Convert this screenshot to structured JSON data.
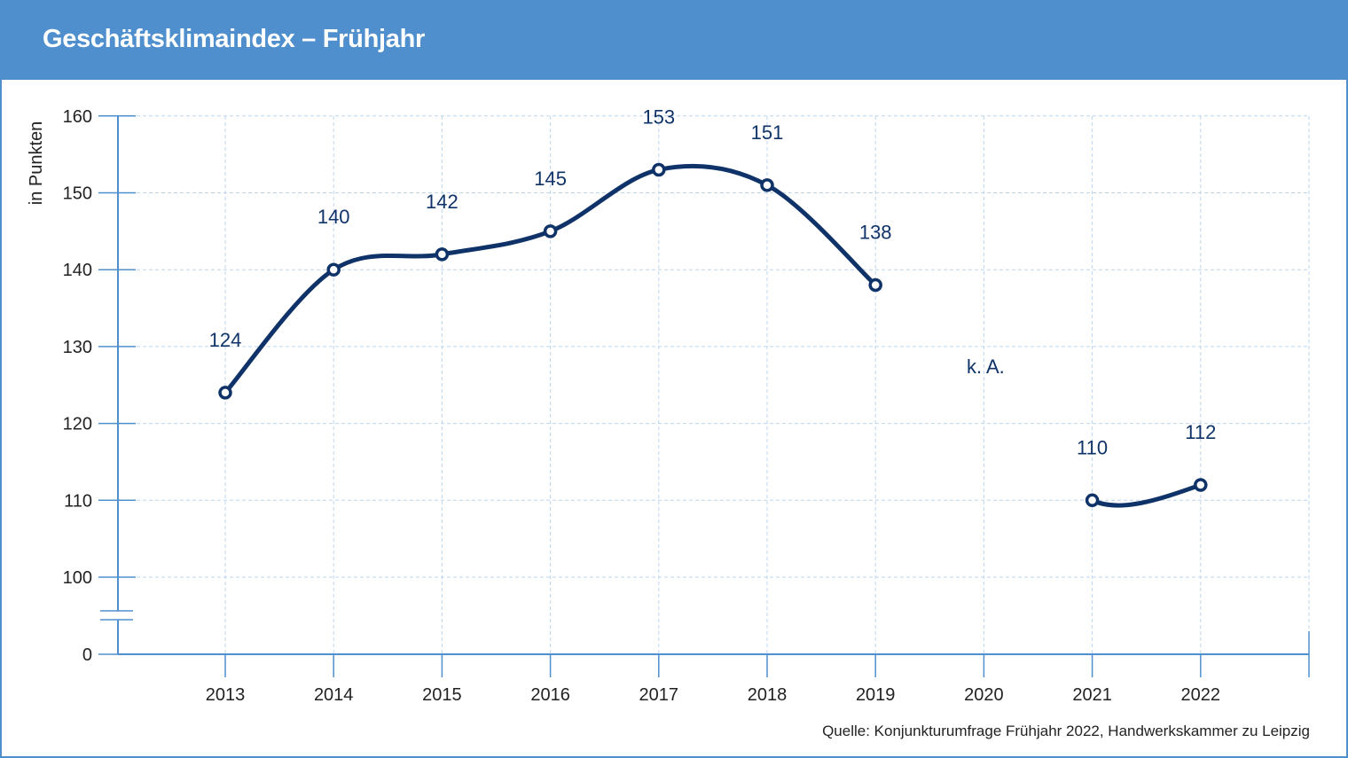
{
  "header": {
    "title": "Geschäftsklimaindex – Frühjahr"
  },
  "source": "Quelle: Konjunkturumfrage Frühjahr 2022, Handwerkskammer zu Leipzig",
  "colors": {
    "header": "#4f8fce",
    "axis": "#4f8fce",
    "grid": "#bcd6ee",
    "line": "#0f3368"
  },
  "chart_data": {
    "type": "line",
    "title": "Geschäftsklimaindex – Frühjahr",
    "xlabel": "",
    "ylabel": "in Punkten",
    "categories": [
      "2013",
      "2014",
      "2015",
      "2016",
      "2017",
      "2018",
      "2019",
      "2020",
      "2021",
      "2022"
    ],
    "values": [
      124,
      140,
      142,
      145,
      153,
      151,
      138,
      null,
      110,
      112
    ],
    "labels": [
      "124",
      "140",
      "142",
      "145",
      "153",
      "151",
      "138",
      "k. A.",
      "110",
      "112"
    ],
    "yticks": [
      0,
      100,
      110,
      120,
      130,
      140,
      150,
      160
    ],
    "ylim": [
      0,
      160
    ],
    "axis_break": "between 0 and 100",
    "grid": true,
    "legend": "none"
  }
}
